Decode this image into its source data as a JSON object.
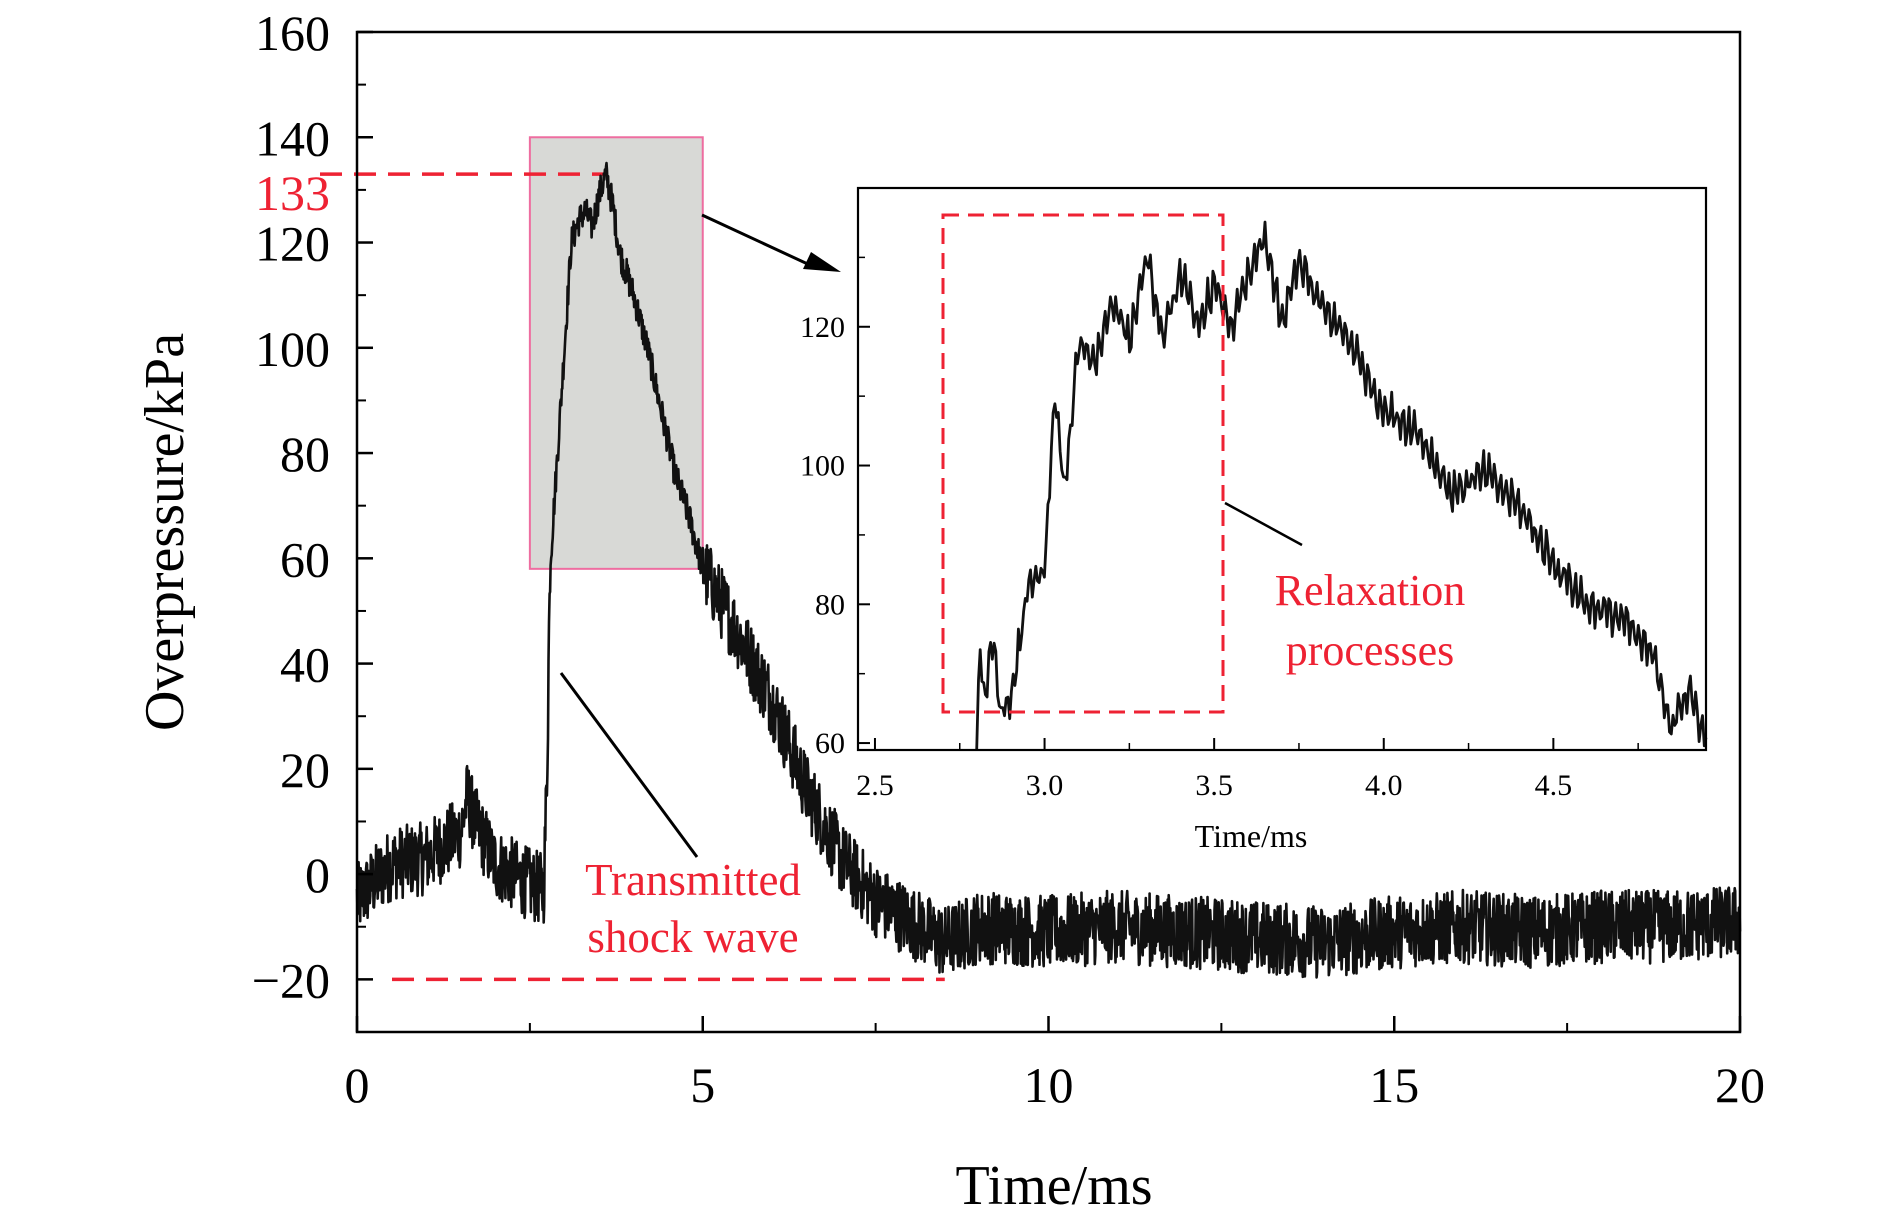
{
  "chart_data": [
    {
      "type": "line",
      "xlabel": "Time/ms",
      "ylabel": "Overpressure/kPa",
      "xlim": [
        0,
        20
      ],
      "ylim": [
        -30,
        160
      ],
      "x_ticks": [
        0,
        5,
        10,
        15,
        20
      ],
      "y_ticks": [
        -20,
        0,
        20,
        40,
        60,
        80,
        100,
        120,
        140,
        160
      ],
      "y_tick_labels": [
        "−20",
        "0",
        "20",
        "40",
        "60",
        "80",
        "100",
        "120",
        "140",
        "160"
      ],
      "series": [
        {
          "x": [
            0,
            0.5,
            1.0,
            1.5,
            1.6,
            1.7,
            2.0,
            2.5,
            2.7,
            2.75,
            2.78,
            2.8,
            2.9,
            3.0,
            3.1,
            3.2,
            3.3,
            3.4,
            3.5,
            3.6,
            3.7,
            3.8,
            4.0,
            4.2,
            4.4,
            4.6,
            4.8,
            5.0,
            5.5,
            6.0,
            6.5,
            7.0,
            7.5,
            8.0,
            8.5,
            9.0,
            10.0,
            11.0,
            12.0,
            13.0,
            14.0,
            15.0,
            16.0,
            17.0,
            18.0,
            19.0,
            20.0
          ],
          "y": [
            -5,
            2,
            3,
            8,
            15,
            10,
            2,
            -2,
            -3,
            20,
            50,
            60,
            80,
            100,
            120,
            124,
            126,
            123,
            129,
            133,
            127,
            118,
            110,
            100,
            88,
            76,
            68,
            58,
            46,
            33,
            16,
            3,
            -5,
            -9,
            -13,
            -10,
            -11,
            -10,
            -11,
            -12,
            -13,
            -11,
            -10,
            -11,
            -10,
            -10,
            -9
          ]
        }
      ],
      "reference_lines": [
        {
          "axis": "y",
          "value": 133,
          "label": "133",
          "x_end": 3.6
        },
        {
          "axis": "y",
          "value": -20,
          "x_end": 8.5
        }
      ],
      "highlight_box": {
        "x_range": [
          2.5,
          5.0
        ],
        "y_range": [
          58,
          140
        ]
      },
      "annotations": [
        "Transmitted\nshock wave"
      ]
    },
    {
      "type": "line",
      "xlabel": "Time/ms",
      "ylabel": "",
      "xlim": [
        2.45,
        4.95
      ],
      "ylim": [
        59,
        140
      ],
      "x_ticks": [
        2.5,
        3.0,
        3.5,
        4.0,
        4.5
      ],
      "x_tick_labels": [
        "2.5",
        "3.0",
        "3.5",
        "4.0",
        "4.5"
      ],
      "y_ticks": [
        60,
        80,
        100,
        120
      ],
      "series": [
        {
          "x": [
            2.8,
            2.81,
            2.82,
            2.85,
            2.87,
            2.9,
            2.95,
            3.0,
            3.03,
            3.06,
            3.1,
            3.15,
            3.2,
            3.25,
            3.3,
            3.35,
            3.4,
            3.45,
            3.5,
            3.55,
            3.6,
            3.65,
            3.7,
            3.75,
            3.8,
            3.9,
            4.0,
            4.1,
            4.2,
            4.3,
            4.4,
            4.5,
            4.6,
            4.7,
            4.8,
            4.85,
            4.9,
            4.95
          ],
          "y": [
            59,
            75,
            66,
            75,
            64,
            66,
            82,
            85,
            110,
            96,
            118,
            115,
            124,
            118,
            130,
            118,
            128,
            120,
            126,
            120,
            127,
            133,
            120,
            130,
            124,
            118,
            108,
            105,
            96,
            99,
            94,
            86,
            80,
            78,
            72,
            62,
            68,
            60
          ]
        }
      ],
      "annotations": [
        "Relaxation\nprocesses"
      ]
    }
  ],
  "colors": {
    "line": "#111111",
    "axis": "#000000",
    "reference": "#ee2233",
    "highlight_fill": "#d8d9d6",
    "highlight_border": "#ee6da0"
  }
}
